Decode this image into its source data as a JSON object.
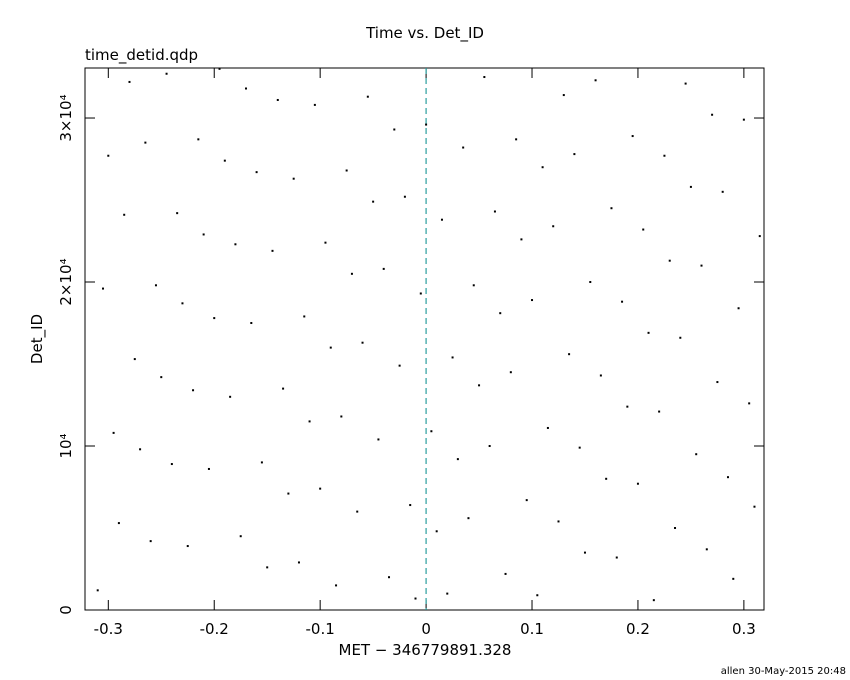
{
  "chart_data": {
    "type": "scatter",
    "title": "Time vs. Det_ID",
    "subtitle": "time_detid.qdp",
    "x_label": "MET − 346779891.328",
    "y_label": "Det_ID",
    "footer": "allen 30-May-2015 20:48",
    "xlim": [
      -0.322,
      0.319
    ],
    "ylim": [
      0,
      33050
    ],
    "xticks": [
      -0.3,
      -0.2,
      -0.1,
      0,
      0.1,
      0.2,
      0.3
    ],
    "yticks": [
      0,
      {
        "value": 10000,
        "label": "10⁴"
      },
      {
        "value": 20000,
        "label": "2×10⁴"
      },
      {
        "value": 30000,
        "label": "3×10⁴"
      }
    ],
    "vline": 0,
    "vline_color": "#2a9d9d",
    "color": "#000000",
    "series": [
      {
        "name": "Det_ID",
        "x": [
          -0.31,
          -0.29,
          -0.27,
          -0.25,
          -0.23,
          -0.21,
          -0.19,
          -0.17,
          -0.15,
          -0.13,
          -0.11,
          -0.09,
          -0.07,
          -0.05,
          -0.03,
          -0.01,
          0.01,
          0.03,
          0.05,
          0.07,
          0.09,
          0.11,
          0.13,
          0.15,
          0.17,
          0.19,
          0.21,
          0.23,
          0.25,
          0.27,
          0.29,
          0.31,
          -0.305,
          -0.285,
          -0.265,
          -0.245,
          -0.225,
          -0.205,
          -0.185,
          -0.165,
          -0.145,
          -0.125,
          -0.105,
          -0.085,
          -0.065,
          -0.045,
          -0.025,
          -0.005,
          0.015,
          0.035,
          0.055,
          0.075,
          0.095,
          0.115,
          0.135,
          0.155,
          0.175,
          0.195,
          0.215,
          0.235,
          0.255,
          0.275,
          0.295,
          0.315,
          -0.3,
          -0.28,
          -0.26,
          -0.24,
          -0.22,
          -0.2,
          -0.18,
          -0.16,
          -0.14,
          -0.12,
          -0.1,
          -0.08,
          -0.06,
          -0.04,
          -0.02,
          0,
          0.02,
          0.04,
          0.06,
          0.08,
          0.1,
          0.12,
          0.14,
          0.16,
          0.18,
          0.2,
          0.22,
          0.24,
          0.26,
          0.28,
          0.3,
          -0.295,
          -0.275,
          -0.255,
          -0.235,
          -0.215,
          -0.195,
          -0.175,
          -0.155,
          -0.135,
          -0.115,
          -0.095,
          -0.075,
          -0.055,
          -0.035,
          -0.015,
          0.005,
          0.025,
          0.045,
          0.065,
          0.085,
          0.105,
          0.125,
          0.145,
          0.165,
          0.185,
          0.205,
          0.225,
          0.245,
          0.265,
          0.285,
          0.305
        ],
        "values": [
          1200,
          5300,
          9800,
          14200,
          18700,
          22900,
          27400,
          31800,
          2600,
          7100,
          11500,
          16000,
          20500,
          24900,
          29300,
          700,
          4800,
          9200,
          13700,
          18100,
          22600,
          27000,
          31400,
          3500,
          8000,
          12400,
          16900,
          21300,
          25800,
          30200,
          1900,
          6300,
          19600,
          24100,
          28500,
          32700,
          3900,
          8600,
          13000,
          17500,
          21900,
          26300,
          30800,
          1500,
          6000,
          10400,
          14900,
          19300,
          23800,
          28200,
          32500,
          2200,
          6700,
          11100,
          15600,
          20000,
          24500,
          28900,
          600,
          5000,
          9500,
          13900,
          18400,
          22800,
          27700,
          32200,
          4200,
          8900,
          13400,
          17800,
          22300,
          26700,
          31100,
          2900,
          7400,
          11800,
          16300,
          20800,
          25200,
          29600,
          1000,
          5600,
          10000,
          14500,
          18900,
          23400,
          27800,
          32300,
          3200,
          7700,
          12100,
          16600,
          21000,
          25500,
          29900,
          10800,
          15300,
          19800,
          24200,
          28700,
          33000,
          4500,
          9000,
          13500,
          17900,
          22400,
          26800,
          31300,
          2000,
          6400,
          10900,
          15400,
          19800,
          24300,
          28700,
          900,
          5400,
          9900,
          14300,
          18800,
          23200,
          27700,
          32100,
          3700,
          8100,
          12600
        ]
      }
    ]
  }
}
